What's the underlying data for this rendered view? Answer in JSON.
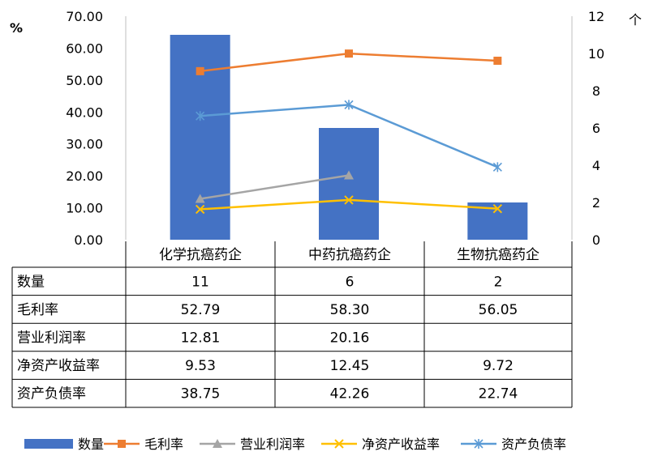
{
  "chart_data": {
    "type": "bar",
    "categories": [
      "化学抗癌药企",
      "中药抗癌药企",
      "生物抗癌药企"
    ],
    "left_axis": {
      "unit": "%",
      "ylim": [
        0,
        70
      ],
      "ticks": [
        "0.00",
        "10.00",
        "20.00",
        "30.00",
        "40.00",
        "50.00",
        "60.00",
        "70.00"
      ]
    },
    "right_axis": {
      "unit": "个",
      "ylim": [
        0,
        12
      ],
      "ticks": [
        "0",
        "2",
        "4",
        "6",
        "8",
        "10",
        "12"
      ]
    },
    "grid": false,
    "legend_position": "bottom",
    "series": [
      {
        "name": "数量",
        "kind": "bar",
        "axis": "right",
        "color": "#4472C4",
        "values": [
          11,
          6,
          2
        ],
        "labels": [
          "11",
          "6",
          "2"
        ]
      },
      {
        "name": "毛利率",
        "kind": "line",
        "axis": "left",
        "marker": "square",
        "color": "#ED7D31",
        "values": [
          52.79,
          58.3,
          56.05
        ],
        "labels": [
          "52.79",
          "58.30",
          "56.05"
        ]
      },
      {
        "name": "营业利润率",
        "kind": "line",
        "axis": "left",
        "marker": "triangle",
        "color": "#A5A5A5",
        "values": [
          12.81,
          20.16,
          null
        ],
        "labels": [
          "12.81",
          "20.16",
          ""
        ]
      },
      {
        "name": "净资产收益率",
        "kind": "line",
        "axis": "left",
        "marker": "x",
        "color": "#FFC000",
        "values": [
          9.53,
          12.45,
          9.72
        ],
        "labels": [
          "9.53",
          "12.45",
          "9.72"
        ]
      },
      {
        "name": "资产负债率",
        "kind": "line",
        "axis": "left",
        "marker": "star",
        "color": "#5B9BD5",
        "values": [
          38.75,
          42.26,
          22.74
        ],
        "labels": [
          "38.75",
          "42.26",
          "22.74"
        ]
      }
    ]
  }
}
